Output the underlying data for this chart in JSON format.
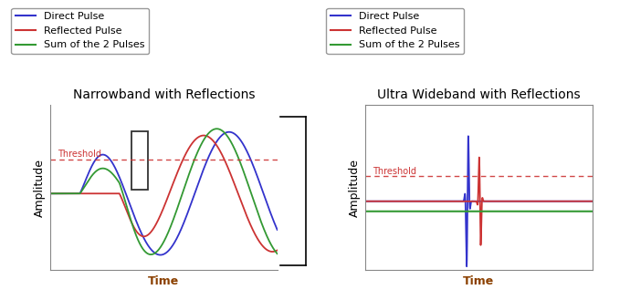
{
  "left_title": "Narrowband with Reflections",
  "right_title": "Ultra Wideband with Reflections",
  "xlabel": "Time",
  "ylabel": "Amplitude",
  "legend_labels": [
    "Direct Pulse",
    "Reflected Pulse",
    "Sum of the 2 Pulses"
  ],
  "legend_colors": [
    "#3333cc",
    "#cc3333",
    "#339933"
  ],
  "threshold_color": "#cc3333",
  "threshold_label": "Threshold",
  "background_color": "#ffffff",
  "title_fontsize": 10,
  "label_fontsize": 9,
  "legend_fontsize": 8,
  "time_color": "#8B4000"
}
